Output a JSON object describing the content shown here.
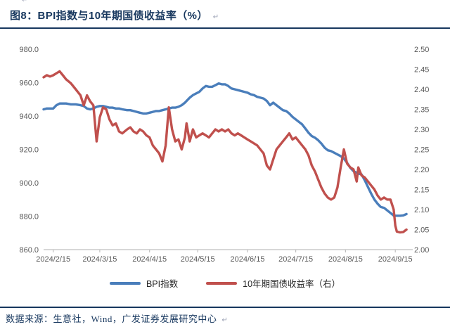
{
  "page": {
    "title": "图8：BPI指数与10年期国债收益率（%）",
    "paragraph_mark": "↵",
    "footer": "数据来源：生意社，Wind，广发证券发展研究中心",
    "accent_color": "#17375E"
  },
  "chart_data": {
    "type": "line",
    "title": "图8：BPI指数与10年期国债收益率（%）",
    "grid": false,
    "legend_position": "bottom",
    "legend": [
      "BPI指数",
      "10年期国债收益率（右）"
    ],
    "left_axis": {
      "label": "BPI指数",
      "min": 860,
      "max": 980,
      "step": 20,
      "tick_labels": [
        "980.0",
        "960.0",
        "940.0",
        "920.0",
        "900.0",
        "880.0",
        "860.0"
      ],
      "text_color": "#595959"
    },
    "right_axis": {
      "label": "10年期国债收益率",
      "min": 2.0,
      "max": 2.5,
      "step": 0.05,
      "tick_labels": [
        "2.50",
        "2.45",
        "2.40",
        "2.35",
        "2.30",
        "2.25",
        "2.20",
        "2.15",
        "2.10",
        "2.05",
        "2.00"
      ],
      "text_color": "#595959"
    },
    "x_axis": {
      "domain": [
        "2024-02-09",
        "2024-09-25"
      ],
      "tick_labels": [
        "2024/2/15",
        "2024/3/15",
        "2024/4/15",
        "2024/5/15",
        "2024/6/15",
        "2024/7/15",
        "2024/8/15",
        "2024/9/15"
      ],
      "line_color": "#BFBFBF"
    },
    "dates": [
      "2024-02-09",
      "2024-02-11",
      "2024-02-13",
      "2024-02-15",
      "2024-02-17",
      "2024-02-19",
      "2024-02-21",
      "2024-02-23",
      "2024-02-26",
      "2024-02-29",
      "2024-03-03",
      "2024-03-05",
      "2024-03-07",
      "2024-03-09",
      "2024-03-11",
      "2024-03-13",
      "2024-03-15",
      "2024-03-17",
      "2024-03-19",
      "2024-03-21",
      "2024-03-23",
      "2024-03-25",
      "2024-03-27",
      "2024-03-29",
      "2024-04-01",
      "2024-04-03",
      "2024-04-05",
      "2024-04-07",
      "2024-04-09",
      "2024-04-11",
      "2024-04-13",
      "2024-04-15",
      "2024-04-17",
      "2024-04-19",
      "2024-04-21",
      "2024-04-23",
      "2024-04-25",
      "2024-04-27",
      "2024-04-29",
      "2024-05-01",
      "2024-05-03",
      "2024-05-05",
      "2024-05-07",
      "2024-05-08",
      "2024-05-10",
      "2024-05-12",
      "2024-05-14",
      "2024-05-16",
      "2024-05-18",
      "2024-05-20",
      "2024-05-22",
      "2024-05-24",
      "2024-05-26",
      "2024-05-28",
      "2024-05-30",
      "2024-06-01",
      "2024-06-03",
      "2024-06-05",
      "2024-06-07",
      "2024-06-09",
      "2024-06-11",
      "2024-06-13",
      "2024-06-15",
      "2024-06-17",
      "2024-06-19",
      "2024-06-21",
      "2024-06-23",
      "2024-06-25",
      "2024-06-27",
      "2024-06-29",
      "2024-07-01",
      "2024-07-03",
      "2024-07-05",
      "2024-07-07",
      "2024-07-09",
      "2024-07-11",
      "2024-07-13",
      "2024-07-15",
      "2024-07-17",
      "2024-07-19",
      "2024-07-21",
      "2024-07-23",
      "2024-07-25",
      "2024-07-27",
      "2024-07-29",
      "2024-07-31",
      "2024-08-02",
      "2024-08-04",
      "2024-08-06",
      "2024-08-08",
      "2024-08-10",
      "2024-08-12",
      "2024-08-14",
      "2024-08-16",
      "2024-08-18",
      "2024-08-20",
      "2024-08-22",
      "2024-08-23",
      "2024-08-25",
      "2024-08-27",
      "2024-08-29",
      "2024-08-31",
      "2024-09-02",
      "2024-09-04",
      "2024-09-06",
      "2024-09-08",
      "2024-09-10",
      "2024-09-12",
      "2024-09-14",
      "2024-09-15",
      "2024-09-16",
      "2024-09-18",
      "2024-09-20",
      "2024-09-22"
    ],
    "series": [
      {
        "name": "BPI指数",
        "axis": "left",
        "color": "#4A7EBB",
        "values": [
          944.0,
          944.5,
          944.5,
          944.5,
          946.5,
          947.5,
          947.5,
          947.5,
          947.0,
          947.0,
          946.5,
          946.0,
          944.5,
          944.0,
          944.5,
          945.5,
          946.0,
          946.0,
          945.5,
          945.0,
          945.0,
          944.5,
          944.5,
          944.0,
          943.5,
          943.5,
          943.0,
          942.5,
          942.0,
          941.5,
          941.5,
          942.0,
          942.5,
          943.0,
          943.0,
          943.5,
          944.0,
          944.5,
          945.0,
          945.0,
          945.5,
          946.5,
          948.0,
          949.0,
          951.0,
          952.5,
          953.5,
          954.5,
          956.5,
          958.0,
          957.5,
          957.5,
          958.5,
          959.5,
          959.0,
          959.0,
          958.0,
          956.5,
          956.0,
          955.5,
          955.0,
          954.5,
          954.0,
          953.0,
          952.5,
          951.5,
          951.0,
          950.5,
          949.0,
          946.5,
          948.0,
          946.5,
          945.0,
          943.5,
          943.0,
          941.5,
          939.5,
          938.0,
          936.5,
          935.0,
          932.5,
          930.0,
          928.0,
          927.0,
          925.5,
          923.5,
          921.0,
          919.5,
          919.0,
          918.0,
          917.0,
          916.0,
          914.5,
          912.0,
          909.0,
          907.0,
          906.0,
          905.5,
          905.0,
          901.5,
          897.5,
          893.5,
          890.0,
          887.5,
          885.5,
          885.0,
          883.5,
          882.0,
          880.4,
          880.3,
          880.3,
          880.3,
          880.5,
          881.3
        ]
      },
      {
        "name": "10年期国债收益率（右）",
        "axis": "right",
        "color": "#C0504D",
        "values": [
          2.43,
          2.435,
          2.432,
          2.435,
          2.44,
          2.445,
          2.435,
          2.425,
          2.415,
          2.4,
          2.385,
          2.36,
          2.385,
          2.37,
          2.36,
          2.27,
          2.33,
          2.355,
          2.35,
          2.325,
          2.31,
          2.315,
          2.295,
          2.29,
          2.3,
          2.305,
          2.295,
          2.29,
          2.3,
          2.295,
          2.285,
          2.28,
          2.26,
          2.25,
          2.24,
          2.22,
          2.26,
          2.355,
          2.3,
          2.27,
          2.275,
          2.25,
          2.28,
          2.315,
          2.27,
          2.3,
          2.28,
          2.285,
          2.29,
          2.285,
          2.28,
          2.29,
          2.3,
          2.295,
          2.3,
          2.295,
          2.3,
          2.29,
          2.285,
          2.29,
          2.285,
          2.28,
          2.275,
          2.27,
          2.265,
          2.26,
          2.25,
          2.24,
          2.21,
          2.2,
          2.225,
          2.25,
          2.26,
          2.27,
          2.28,
          2.29,
          2.275,
          2.28,
          2.27,
          2.26,
          2.25,
          2.235,
          2.21,
          2.195,
          2.175,
          2.155,
          2.14,
          2.13,
          2.125,
          2.13,
          2.155,
          2.205,
          2.25,
          2.215,
          2.205,
          2.2,
          2.17,
          2.205,
          2.185,
          2.18,
          2.17,
          2.16,
          2.15,
          2.135,
          2.125,
          2.13,
          2.125,
          2.125,
          2.1,
          2.06,
          2.045,
          2.043,
          2.044,
          2.05
        ]
      }
    ]
  }
}
